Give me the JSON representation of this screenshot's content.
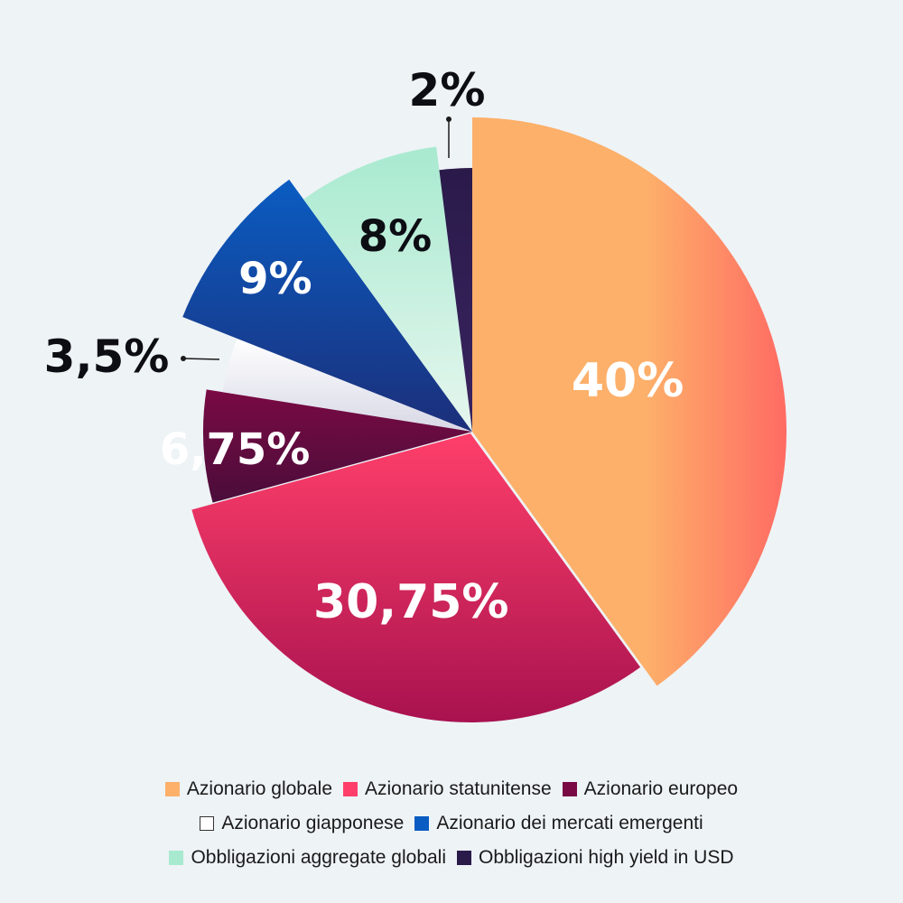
{
  "chart_data": {
    "type": "pie",
    "title": "",
    "slices": [
      {
        "name": "Azionario globale",
        "value": 40,
        "label": "40%",
        "color": "#fdb06a",
        "color2": "#ff6b63"
      },
      {
        "name": "Azionario statunitense",
        "value": 30.75,
        "label": "30,75%",
        "color": "#ff3f6a",
        "color2": "#a8124f"
      },
      {
        "name": "Azionario europeo",
        "value": 6.75,
        "label": "6,75%",
        "color": "#7a0a44",
        "color2": "#4a0d3a"
      },
      {
        "name": "Azionario giapponese",
        "value": 3.5,
        "label": "3,5%",
        "color": "#ffffff",
        "color2": "#d8d8e6"
      },
      {
        "name": "Azionario dei mercati emergenti",
        "value": 9,
        "label": "9%",
        "color": "#0a5cc2",
        "color2": "#1c2f7a"
      },
      {
        "name": "Obbligazioni aggregate globali",
        "value": 8,
        "label": "8%",
        "color": "#a8ead0",
        "color2": "#e6f6ee"
      },
      {
        "name": "Obbligazioni high yield in USD",
        "value": 2,
        "label": "2%",
        "color": "#2a1a4a",
        "color2": "#3a2460"
      }
    ],
    "legend_position": "bottom"
  },
  "legend_rows": [
    [
      0,
      1,
      2
    ],
    [
      3,
      4
    ],
    [
      5,
      6
    ]
  ]
}
